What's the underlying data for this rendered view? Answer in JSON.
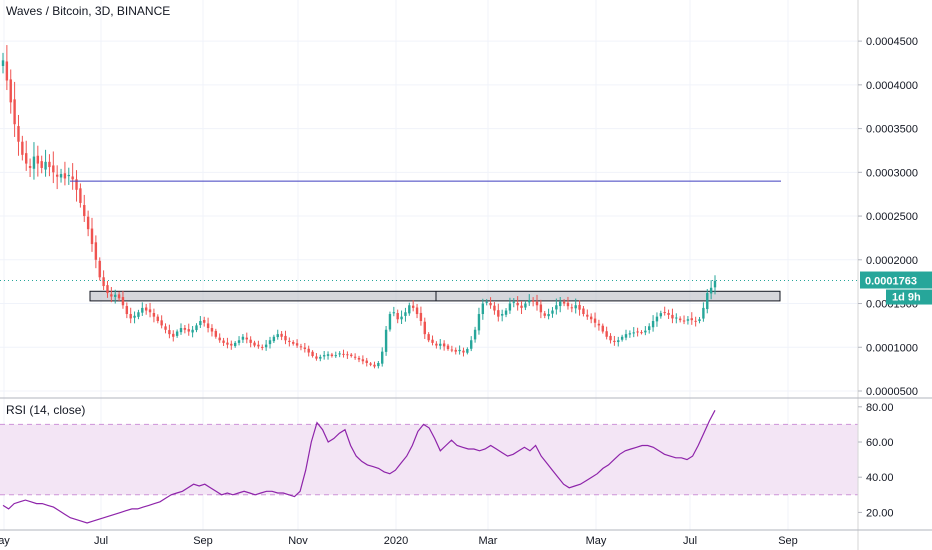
{
  "chart_data": {
    "type": "candlestick",
    "title": "Waves / Bitcoin, 3D, BINANCE",
    "price": {
      "ylim": [
        4.2e-05,
        0.000497
      ],
      "ticks": [
        "0.0000500",
        "0.0001000",
        "0.0001500",
        "0.0002000",
        "0.0002500",
        "0.0003000",
        "0.0003500",
        "0.0004000",
        "0.0004500"
      ],
      "tick_values": [
        5e-05,
        0.0001,
        0.00015,
        0.0002,
        0.00025,
        0.0003,
        0.00035,
        0.0004,
        0.00045
      ],
      "last_price_label": "0.0001763",
      "last_price": 0.0001763,
      "countdown": "1d 9h",
      "resistance_line": 0.00029,
      "support_zone": [
        0.000153,
        0.000164
      ],
      "closes": [
        0.000428,
        0.000405,
        0.00038,
        0.000355,
        0.000335,
        0.00032,
        0.00031,
        0.000305,
        0.000318,
        0.00031,
        0.000305,
        0.000312,
        0.000306,
        0.0003,
        0.000295,
        0.000298,
        0.000293,
        0.000297,
        0.000292,
        0.00028,
        0.000265,
        0.00025,
        0.000235,
        0.000218,
        0.0002,
        0.00018,
        0.00017,
        0.000162,
        0.000158,
        0.00016,
        0.000156,
        0.000148,
        0.000138,
        0.000133,
        0.000136,
        0.00014,
        0.000145,
        0.000142,
        0.00014,
        0.000135,
        0.00013,
        0.000125,
        0.00012,
        0.000115,
        0.000112,
        0.000118,
        0.000122,
        0.00012,
        0.000118,
        0.00012,
        0.000125,
        0.00013,
        0.000128,
        0.000122,
        0.000118,
        0.000112,
        0.000108,
        0.000105,
        0.000103,
        0.000102,
        0.000105,
        0.000108,
        0.000112,
        0.000109,
        0.000105,
        0.000102,
        0.000101,
        0.0001,
        0.000103,
        0.000108,
        0.000112,
        0.000115,
        0.000112,
        0.000108,
        0.000106,
        0.000104,
        0.000102,
        0.0001,
        9.8e-05,
        9.4e-05,
        9e-05,
        8.7e-05,
        8.9e-05,
        9.1e-05,
        9.2e-05,
        9e-05,
        9.1e-05,
        9.3e-05,
        9.2e-05,
        9.1e-05,
        9e-05,
        8.8e-05,
        8.6e-05,
        8.4e-05,
        8.2e-05,
        8e-05,
        7.8e-05,
        8.2e-05,
        9.5e-05,
        0.00012,
        0.000138,
        0.00014,
        0.000132,
        0.000135,
        0.00014,
        0.000148,
        0.000145,
        0.000138,
        0.00013,
        0.000115,
        0.000108,
        0.000105,
        0.000102,
        0.000104,
        0.000101,
        9.8e-05,
        9.7e-05,
        9.5e-05,
        9.7e-05,
        9.4e-05,
        9.8e-05,
        0.000108,
        0.00012,
        0.000138,
        0.00015,
        0.000152,
        0.000148,
        0.000142,
        0.000135,
        0.000138,
        0.000142,
        0.00015,
        0.000152,
        0.000148,
        0.000145,
        0.00015,
        0.000154,
        0.000152,
        0.000148,
        0.00014,
        0.000136,
        0.000138,
        0.000142,
        0.000148,
        0.000152,
        0.00015,
        0.000147,
        0.000145,
        0.000148,
        0.000143,
        0.000138,
        0.000135,
        0.000132,
        0.000128,
        0.000125,
        0.000118,
        0.000112,
        0.000108,
        0.000106,
        0.000108,
        0.000112,
        0.000115,
        0.000116,
        0.000117,
        0.000118,
        0.000117,
        0.000119,
        0.000124,
        0.00013,
        0.000135,
        0.000139,
        0.00014,
        0.000137,
        0.000133,
        0.000134,
        0.000131,
        0.00013,
        0.000132,
        0.000131,
        0.00013,
        0.000132,
        0.000145,
        0.000162,
        0.000168,
        0.000176
      ]
    },
    "rsi": {
      "title": "RSI (14, close)",
      "ylim": [
        10,
        85
      ],
      "ticks": [
        "20.00",
        "40.00",
        "60.00",
        "80.00"
      ],
      "tick_values": [
        20,
        40,
        60,
        80
      ],
      "band": [
        30,
        70
      ],
      "values": [
        24,
        22,
        25,
        26,
        27,
        26,
        25,
        25,
        24,
        23,
        21,
        19,
        17,
        16,
        15,
        14,
        15,
        16,
        17,
        18,
        19,
        20,
        21,
        22,
        22,
        23,
        24,
        25,
        26,
        28,
        30,
        31,
        32,
        34,
        36,
        35,
        36,
        34,
        32,
        30,
        31,
        30,
        31,
        32,
        31,
        30,
        31,
        32,
        32,
        31,
        31,
        30,
        29,
        32,
        44,
        60,
        71,
        67,
        60,
        62,
        65,
        67,
        58,
        52,
        49,
        47,
        46,
        45,
        43,
        42,
        44,
        48,
        52,
        58,
        66,
        70,
        68,
        62,
        55,
        58,
        61,
        58,
        57,
        56,
        56,
        55,
        56,
        58,
        56,
        54,
        52,
        53,
        55,
        57,
        55,
        58,
        52,
        48,
        44,
        40,
        36,
        34,
        35,
        36,
        38,
        40,
        42,
        45,
        47,
        50,
        53,
        55,
        56,
        57,
        58,
        58,
        57,
        55,
        53,
        52,
        51,
        51,
        50,
        52,
        58,
        65,
        72,
        78
      ]
    },
    "x_ticks": [
      "ay",
      "Jul",
      "Sep",
      "Nov",
      "2020",
      "Mar",
      "May",
      "Jul",
      "Sep"
    ],
    "colors": {
      "up": "#26a69a",
      "down": "#ef5350",
      "resistance": "#3f3fbf",
      "rsi_line": "#8e24aa",
      "rsi_band": "#f3e5f5",
      "last_price_tag": "#26a69a"
    }
  }
}
